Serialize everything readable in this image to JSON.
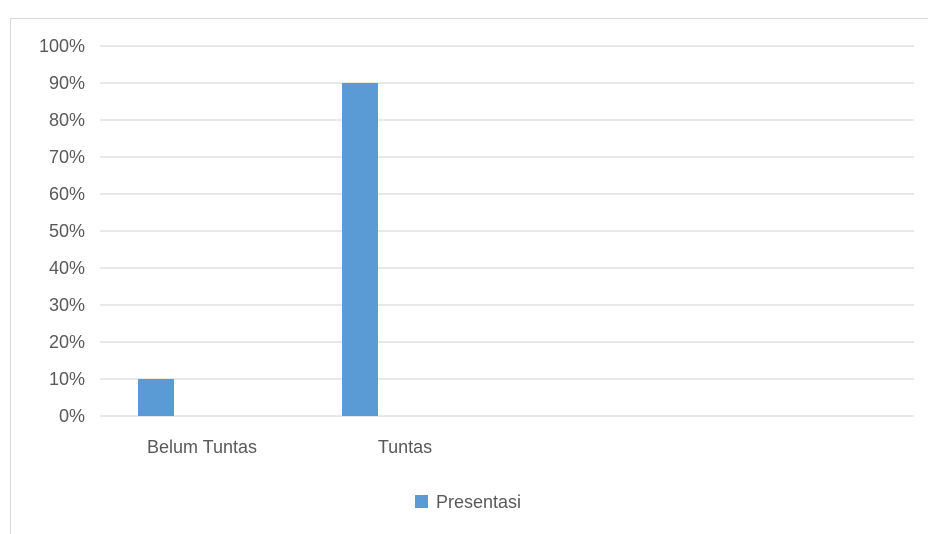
{
  "chart_data": {
    "type": "bar",
    "title": "",
    "xlabel": "",
    "ylabel": "",
    "categories": [
      "Belum Tuntas",
      "Tuntas"
    ],
    "series": [
      {
        "name": "Presentasi",
        "values": [
          0.1,
          0.9
        ],
        "color": "#5b9bd5"
      }
    ],
    "ylim": [
      0,
      1
    ],
    "y_ticks": [
      "0%",
      "10%",
      "20%",
      "30%",
      "40%",
      "50%",
      "60%",
      "70%",
      "80%",
      "90%",
      "100%"
    ],
    "grid": true,
    "legend_position": "bottom"
  },
  "colors": {
    "gridline": "#d9d9d9",
    "text": "#595959",
    "frame": "#d9d9d9"
  }
}
